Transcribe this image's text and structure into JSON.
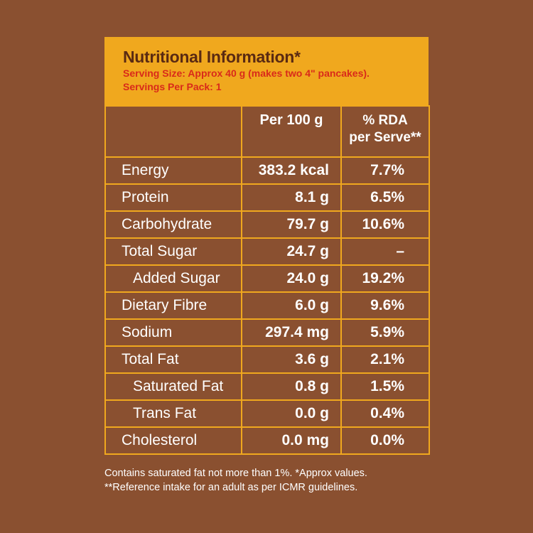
{
  "panel": {
    "title": "Nutritional Information*",
    "serving_size": "Serving Size: Approx 40 g (makes two 4\" pancakes).",
    "servings_per_pack": "Servings Per Pack: 1"
  },
  "table": {
    "col_label": "",
    "col_per100": "Per 100 g",
    "col_rda_line1": "% RDA",
    "col_rda_line2": "per Serve**",
    "rows": [
      {
        "label": "Energy",
        "per100": "383.2 kcal",
        "rda": "7.7%"
      },
      {
        "label": "Protein",
        "per100": "8.1 g",
        "rda": "6.5%"
      },
      {
        "label": "Carbohydrate",
        "per100": "79.7 g",
        "rda": "10.6%"
      },
      {
        "label": "Total Sugar",
        "per100": "24.7 g",
        "rda": "–"
      },
      {
        "label": "Added Sugar",
        "per100": "24.0 g",
        "rda": "19.2%"
      },
      {
        "label": "Dietary Fibre",
        "per100": "6.0 g",
        "rda": "9.6%"
      },
      {
        "label": "Sodium",
        "per100": "297.4 mg",
        "rda": "5.9%"
      },
      {
        "label": "Total Fat",
        "per100": "3.6 g",
        "rda": "2.1%"
      },
      {
        "label": "Saturated Fat",
        "per100": "0.8 g",
        "rda": "1.5%"
      },
      {
        "label": "Trans Fat",
        "per100": "0.0 g",
        "rda": "0.4%"
      },
      {
        "label": "Cholesterol",
        "per100": "0.0 mg",
        "rda": "0.0%"
      }
    ]
  },
  "footer": {
    "line1": "Contains saturated fat not more than 1%. *Approx values.",
    "line2": "**Reference intake for an adult as per ICMR guidelines."
  },
  "colors": {
    "background": "#8a5030",
    "accent": "#f0a81e",
    "title": "#5a2a12",
    "subtitle": "#d92a1a"
  }
}
